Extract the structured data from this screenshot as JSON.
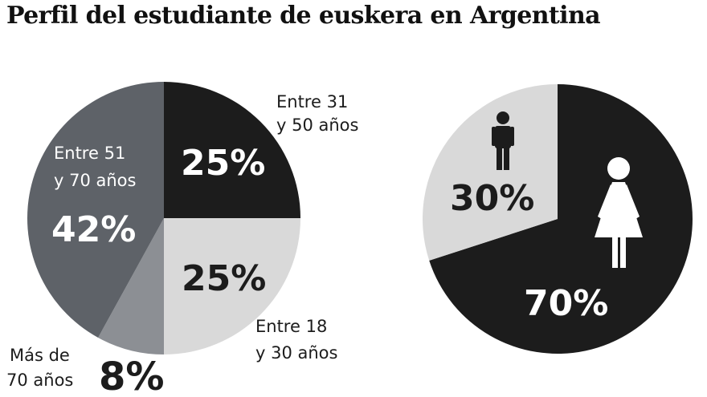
{
  "title": "Perfil del estudiante de euskera en Argentina",
  "colors": {
    "black": "#1c1c1c",
    "dark_gray": "#5e6268",
    "mid_gray": "#8c8f94",
    "light_gray": "#d9d9d9"
  },
  "icons": [
    "man-icon",
    "woman-icon"
  ],
  "chart_data": [
    {
      "type": "pie",
      "title": "",
      "categories": [
        "Entre 31 y 50 años",
        "Entre 18 y 30 años",
        "Más de 70 años",
        "Entre 51 y 70 años"
      ],
      "values": [
        25,
        25,
        8,
        42
      ],
      "value_labels": [
        "25%",
        "25%",
        "8%",
        "42%"
      ],
      "category_lines": [
        [
          "Entre 31",
          "y 50 años"
        ],
        [
          "Entre 18",
          "y 30 años"
        ],
        [
          "Más de",
          "70 años"
        ],
        [
          "Entre 51",
          "y 70 años"
        ]
      ],
      "colors": [
        "#1c1c1c",
        "#d9d9d9",
        "#8c8f94",
        "#5e6268"
      ]
    },
    {
      "type": "pie",
      "title": "",
      "categories": [
        "Mujeres",
        "Hombres"
      ],
      "values": [
        70,
        30
      ],
      "value_labels": [
        "70%",
        "30%"
      ],
      "colors": [
        "#1c1c1c",
        "#d9d9d9"
      ]
    }
  ]
}
